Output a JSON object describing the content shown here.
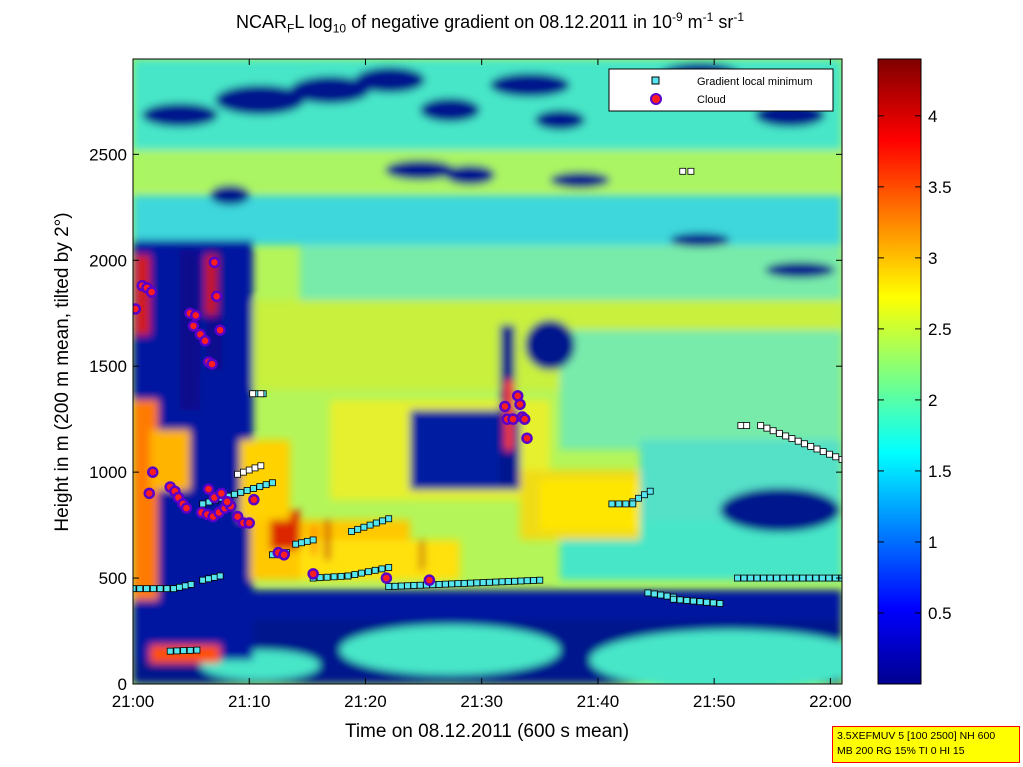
{
  "title_parts": {
    "prefix": "NCAR",
    "sub1": "F",
    "mid1": "L log",
    "sub2": "10",
    "mid2": " of negative gradient on 08.12.2011 in 10",
    "sup1": "-9",
    "mid3": " m",
    "sup2": "-1",
    "mid4": " sr",
    "sup3": "-1"
  },
  "infobox": {
    "line1": "3.5XEFMUV 5 [100 2500] NH 600",
    "line2": "MB 200 RG 15% TI 0 HI 15"
  },
  "colors": {
    "low": "#00008f",
    "cyan": "#00ffff",
    "yellow": "#ffff00",
    "high": "#800000",
    "gradient_marker": "#55e6f0",
    "cloud_marker": "#ff1e1e",
    "cloud_edge": "#5a00c8"
  },
  "chart_data": {
    "type": "heatmap",
    "xlabel": "Time on 08.12.2011 (600 s mean)",
    "ylabel": "Height in m (200 m mean, tilted by 2°)",
    "xlim": [
      0,
      61
    ],
    "ylim": [
      0,
      2950
    ],
    "x_ticks": [
      {
        "v": 0,
        "label": "21:00"
      },
      {
        "v": 10,
        "label": "21:10"
      },
      {
        "v": 20,
        "label": "21:20"
      },
      {
        "v": 30,
        "label": "21:30"
      },
      {
        "v": 40,
        "label": "21:40"
      },
      {
        "v": 50,
        "label": "21:50"
      },
      {
        "v": 60,
        "label": "22:00"
      }
    ],
    "y_ticks": [
      0,
      500,
      1000,
      1500,
      2000,
      2500
    ],
    "colorbar": {
      "min": 0,
      "max": 4.4,
      "ticks": [
        0.5,
        1,
        1.5,
        2,
        2.5,
        3,
        3.5,
        4
      ]
    },
    "legend": {
      "placement": "top-right",
      "items": [
        {
          "label": "Gradient local minimum",
          "marker": "square"
        },
        {
          "label": "Cloud",
          "marker": "circle"
        }
      ]
    },
    "gradient_minima_segments": [
      {
        "x": [
          0,
          3.5
        ],
        "y": [
          450,
          450
        ]
      },
      {
        "x": [
          3.5,
          5
        ],
        "y": [
          450,
          470
        ]
      },
      {
        "x": [
          6,
          7.5
        ],
        "y": [
          490,
          510
        ]
      },
      {
        "x": [
          3.2,
          5.5
        ],
        "y": [
          155,
          160
        ]
      },
      {
        "x": [
          10.5,
          11.2
        ],
        "y": [
          1370,
          1370
        ]
      },
      {
        "x": [
          12,
          13.2
        ],
        "y": [
          610,
          620
        ]
      },
      {
        "x": [
          14,
          15.5
        ],
        "y": [
          660,
          680
        ]
      },
      {
        "x": [
          15.5,
          18.5
        ],
        "y": [
          500,
          510
        ]
      },
      {
        "x": [
          18.5,
          22
        ],
        "y": [
          510,
          550
        ]
      },
      {
        "x": [
          22,
          35
        ],
        "y": [
          460,
          490
        ]
      },
      {
        "x": [
          43,
          44.5
        ],
        "y": [
          860,
          910
        ]
      },
      {
        "x": [
          41.2,
          43
        ],
        "y": [
          850,
          850
        ]
      },
      {
        "x": [
          44.3,
          46.5
        ],
        "y": [
          430,
          410
        ]
      },
      {
        "x": [
          46.5,
          50.5
        ],
        "y": [
          400,
          380
        ]
      },
      {
        "x": [
          52,
          61
        ],
        "y": [
          500,
          500
        ]
      },
      {
        "x": [
          18.8,
          22
        ],
        "y": [
          720,
          780
        ]
      },
      {
        "x": [
          6,
          12
        ],
        "y": [
          850,
          950
        ]
      }
    ],
    "gradient_minima_white_segments": [
      {
        "x": [
          47.3,
          48
        ],
        "y": [
          2420,
          2420
        ]
      },
      {
        "x": [
          52.3,
          52.8
        ],
        "y": [
          1220,
          1220
        ]
      },
      {
        "x": [
          54,
          61
        ],
        "y": [
          1220,
          1060
        ]
      },
      {
        "x": [
          10.3,
          11
        ],
        "y": [
          1370,
          1370
        ]
      },
      {
        "x": [
          9,
          11
        ],
        "y": [
          990,
          1030
        ]
      }
    ],
    "clouds": [
      {
        "x": 0.2,
        "y": 1770
      },
      {
        "x": 0.8,
        "y": 1880
      },
      {
        "x": 1.2,
        "y": 1870
      },
      {
        "x": 1.6,
        "y": 1850
      },
      {
        "x": 1.4,
        "y": 900
      },
      {
        "x": 1.7,
        "y": 1000
      },
      {
        "x": 3.2,
        "y": 930
      },
      {
        "x": 3.6,
        "y": 910
      },
      {
        "x": 3.9,
        "y": 880
      },
      {
        "x": 4.3,
        "y": 850
      },
      {
        "x": 4.6,
        "y": 830
      },
      {
        "x": 4.9,
        "y": 1750
      },
      {
        "x": 5.2,
        "y": 1690
      },
      {
        "x": 5.4,
        "y": 1740
      },
      {
        "x": 5.8,
        "y": 1650
      },
      {
        "x": 6.2,
        "y": 1620
      },
      {
        "x": 6.5,
        "y": 1520
      },
      {
        "x": 6.8,
        "y": 1510
      },
      {
        "x": 7.0,
        "y": 1990
      },
      {
        "x": 7.2,
        "y": 1830
      },
      {
        "x": 7.5,
        "y": 1670
      },
      {
        "x": 5.9,
        "y": 810
      },
      {
        "x": 6.4,
        "y": 800
      },
      {
        "x": 6.9,
        "y": 790
      },
      {
        "x": 7.4,
        "y": 810
      },
      {
        "x": 7.9,
        "y": 830
      },
      {
        "x": 8.4,
        "y": 840
      },
      {
        "x": 9.0,
        "y": 790
      },
      {
        "x": 9.5,
        "y": 760
      },
      {
        "x": 10.0,
        "y": 760
      },
      {
        "x": 10.4,
        "y": 870
      },
      {
        "x": 6.5,
        "y": 920
      },
      {
        "x": 7.0,
        "y": 880
      },
      {
        "x": 7.6,
        "y": 900
      },
      {
        "x": 8.1,
        "y": 860
      },
      {
        "x": 12.5,
        "y": 620
      },
      {
        "x": 13.0,
        "y": 610
      },
      {
        "x": 15.5,
        "y": 520
      },
      {
        "x": 21.8,
        "y": 500
      },
      {
        "x": 25.5,
        "y": 490
      },
      {
        "x": 32.0,
        "y": 1310
      },
      {
        "x": 32.2,
        "y": 1250
      },
      {
        "x": 32.7,
        "y": 1250
      },
      {
        "x": 33.1,
        "y": 1360
      },
      {
        "x": 33.3,
        "y": 1320
      },
      {
        "x": 33.5,
        "y": 1260
      },
      {
        "x": 33.7,
        "y": 1250
      },
      {
        "x": 33.9,
        "y": 1160
      }
    ]
  }
}
